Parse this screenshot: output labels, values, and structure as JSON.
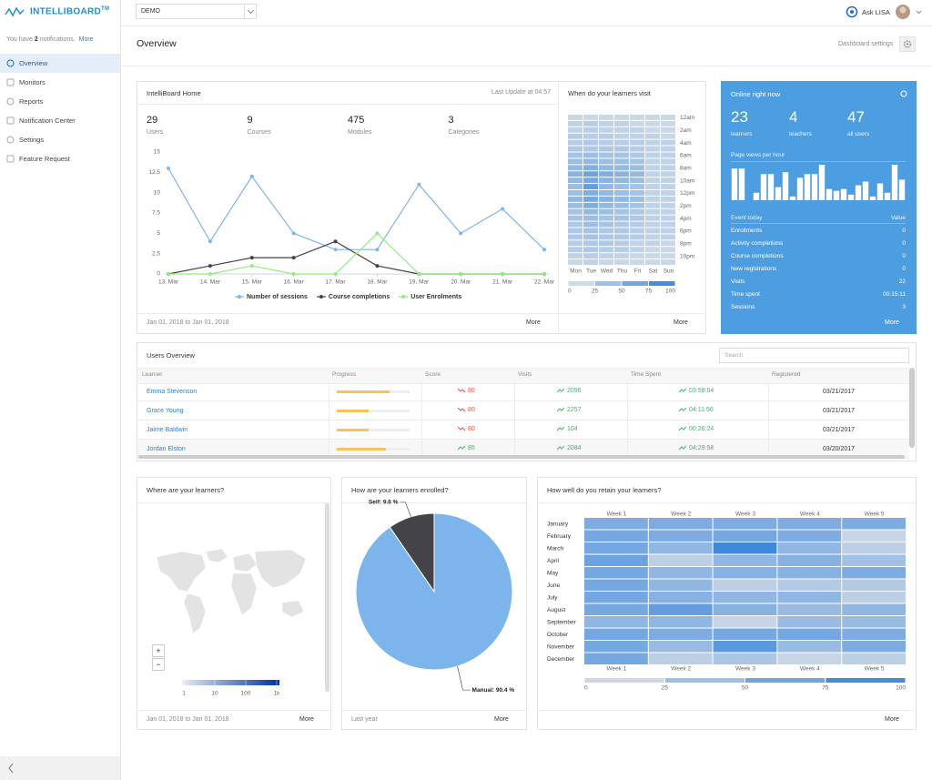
{
  "sidebar": {
    "brand": "INTELLIBOARD",
    "brand_mark": "TM",
    "notice": {
      "prefix": "You have",
      "count": 2,
      "suffix": "notifications.",
      "link": "More"
    },
    "nav": [
      "Overview",
      "Monitors",
      "Reports",
      "Notification Center",
      "Settings",
      "Feature Request"
    ],
    "active": 0
  },
  "topbar": {
    "select": "DEMO",
    "assistant": "Ask LISA"
  },
  "header": {
    "title": "Overview",
    "settings": "Dashboard settings"
  },
  "home": {
    "title": "IntelliBoard Home",
    "updated": "Last Update at 04:57",
    "stats": [
      {
        "value": 29,
        "label": "Users"
      },
      {
        "value": 9,
        "label": "Courses"
      },
      {
        "value": 475,
        "label": "Modules"
      },
      {
        "value": 3,
        "label": "Categories"
      }
    ],
    "period": "Jan 01, 2018 to Jan 01, 2018",
    "more": "More",
    "chart": {
      "type": "line",
      "categories": [
        "13. Mar",
        "14. Mar",
        "15. Mar",
        "16. Mar",
        "17. Mar",
        "18. Mar",
        "19. Mar",
        "20. Mar",
        "21. Mar",
        "22. Mar"
      ],
      "ylim": [
        0,
        15
      ],
      "yticks": [
        0,
        2.5,
        5,
        7.5,
        10,
        12.5,
        15
      ],
      "series": [
        {
          "name": "Number of sessions",
          "color": "#7cb5ec",
          "values": [
            13,
            4,
            12,
            5,
            3,
            3,
            11,
            5,
            8,
            3
          ]
        },
        {
          "name": "Course completions",
          "color": "#434348",
          "values": [
            0,
            1,
            2,
            2,
            4,
            1,
            0,
            0,
            0,
            0
          ]
        },
        {
          "name": "User Enrolments",
          "color": "#90ed7d",
          "values": [
            0,
            0,
            1,
            0,
            0,
            5,
            0,
            0,
            0,
            0
          ]
        }
      ]
    }
  },
  "visits": {
    "title": "When do your learners visit",
    "more": "More",
    "chart": {
      "type": "heatmap",
      "x": [
        "Mon",
        "Tue",
        "Wed",
        "Thu",
        "Fri",
        "Sat",
        "Sun"
      ],
      "y": [
        "12am",
        null,
        "2am",
        null,
        "4am",
        null,
        "6am",
        null,
        "8am",
        null,
        "10am",
        null,
        "12pm",
        null,
        "2pm",
        null,
        "4pm",
        null,
        "6pm",
        null,
        "8pm",
        null,
        "10pm",
        null
      ],
      "values": [
        [
          15,
          15,
          15,
          15,
          15,
          15,
          15
        ],
        [
          20,
          25,
          20,
          20,
          15,
          15,
          15
        ],
        [
          20,
          25,
          20,
          20,
          20,
          15,
          15
        ],
        [
          25,
          25,
          25,
          20,
          20,
          20,
          15
        ],
        [
          25,
          30,
          25,
          25,
          25,
          20,
          20
        ],
        [
          30,
          30,
          30,
          30,
          25,
          20,
          20
        ],
        [
          35,
          40,
          35,
          35,
          30,
          20,
          20
        ],
        [
          40,
          45,
          40,
          40,
          35,
          20,
          20
        ],
        [
          45,
          55,
          45,
          45,
          40,
          20,
          20
        ],
        [
          50,
          65,
          55,
          50,
          45,
          20,
          20
        ],
        [
          45,
          60,
          50,
          45,
          40,
          20,
          20
        ],
        [
          40,
          70,
          45,
          40,
          35,
          20,
          20
        ],
        [
          40,
          55,
          45,
          40,
          35,
          20,
          20
        ],
        [
          45,
          60,
          50,
          45,
          40,
          20,
          20
        ],
        [
          40,
          55,
          45,
          40,
          35,
          20,
          20
        ],
        [
          35,
          45,
          40,
          35,
          30,
          20,
          20
        ],
        [
          35,
          40,
          35,
          35,
          30,
          20,
          20
        ],
        [
          30,
          40,
          35,
          30,
          25,
          20,
          20
        ],
        [
          30,
          35,
          30,
          30,
          25,
          20,
          20
        ],
        [
          30,
          35,
          30,
          30,
          25,
          20,
          20
        ],
        [
          25,
          30,
          30,
          25,
          20,
          20,
          15
        ],
        [
          25,
          30,
          25,
          25,
          20,
          15,
          15
        ],
        [
          20,
          25,
          20,
          20,
          15,
          15,
          15
        ],
        [
          15,
          20,
          15,
          15,
          15,
          15,
          15
        ]
      ],
      "zlim": [
        0,
        100
      ],
      "zticks": [
        0,
        25,
        50,
        75,
        100
      ],
      "colors": [
        "#e4e7ec",
        "#2f7fd9"
      ]
    }
  },
  "online": {
    "title": "Online right now",
    "stats": [
      {
        "value": 23,
        "label": "learners"
      },
      {
        "value": 4,
        "label": "teachers"
      },
      {
        "value": 47,
        "label": "all users"
      }
    ],
    "chart": {
      "type": "bar",
      "title": "Page views per hour",
      "values": [
        34,
        34,
        0,
        8,
        28,
        28,
        14,
        30,
        4,
        24,
        28,
        28,
        38,
        12,
        10,
        12,
        6,
        16,
        20,
        4,
        18,
        8,
        38,
        22
      ],
      "color": "#ffffff"
    },
    "events": {
      "header": [
        "Event today",
        "Value"
      ],
      "rows": [
        [
          "Enrollments",
          0
        ],
        [
          "Activity completions",
          0
        ],
        [
          "Course completions",
          0
        ],
        [
          "New registrations",
          0
        ],
        [
          "Visits",
          22
        ],
        [
          "Time spent",
          "00:15:11"
        ],
        [
          "Sessions",
          3
        ]
      ]
    },
    "more": "More"
  },
  "users": {
    "title": "Users Overview",
    "search": "Search",
    "columns": [
      "Learner",
      "Progress",
      "Score",
      "Visits",
      "Time Spent",
      "Registered"
    ],
    "rows": [
      {
        "name": "Emma Stevenson",
        "progress": 72,
        "score": 80,
        "score_trend": "down",
        "visits": 2096,
        "visits_trend": "up",
        "time": "03:59:04",
        "registered": "03/21/2017"
      },
      {
        "name": "Grace Young",
        "progress": 44,
        "score": 80,
        "score_trend": "down",
        "visits": 2257,
        "visits_trend": "up",
        "time": "04:11:56",
        "registered": "03/21/2017"
      },
      {
        "name": "Jaime Baldwin",
        "progress": 44,
        "score": 80,
        "score_trend": "down",
        "visits": 104,
        "visits_trend": "up",
        "time": "00:26:24",
        "registered": "03/21/2017"
      },
      {
        "name": "Jordan Elston",
        "progress": 67,
        "score": 85,
        "score_trend": "up",
        "visits": 2084,
        "visits_trend": "up",
        "time": "04:29:58",
        "registered": "03/20/2017"
      }
    ]
  },
  "map": {
    "title": "Where are your learners?",
    "zoom": [
      "+",
      "−"
    ],
    "legend": {
      "type": "colorbar",
      "log": true,
      "xlim": [
        1,
        1000
      ],
      "xticks": [
        1,
        10,
        100,
        {
          "value": 1000,
          "label": "1k"
        }
      ],
      "colors": [
        "#e6ebf5",
        "#003399"
      ]
    },
    "period": "Jan 01, 2018 to Jan 01, 2018",
    "more": "More"
  },
  "enrol": {
    "title": "How are your learners enrolled?",
    "chart": {
      "type": "pie",
      "categories": [
        "Self",
        "Manual"
      ],
      "values": [
        9.6,
        90.4
      ],
      "value_labels": [
        "Self: 9.6 %",
        "Manual: 90.4 %"
      ],
      "colors": [
        "#434348",
        "#7cb5ec"
      ]
    },
    "period": "Last year",
    "more": "More"
  },
  "retention": {
    "title": "How well do you retain your learners?",
    "chart": {
      "type": "heatmap",
      "x": [
        "Week 1",
        "Week 2",
        "Week 3",
        "Week 4",
        "Week 5"
      ],
      "y": [
        "January",
        "February",
        "March",
        "April",
        "May",
        "June",
        "July",
        "August",
        "September",
        "October",
        "November",
        "December"
      ],
      "values": [
        [
          55,
          55,
          55,
          55,
          55
        ],
        [
          60,
          55,
          60,
          55,
          15
        ],
        [
          60,
          45,
          90,
          45,
          20
        ],
        [
          65,
          20,
          45,
          50,
          35
        ],
        [
          60,
          45,
          50,
          50,
          55
        ],
        [
          60,
          45,
          20,
          25,
          25
        ],
        [
          60,
          50,
          45,
          45,
          20
        ],
        [
          60,
          70,
          50,
          40,
          45
        ],
        [
          45,
          45,
          15,
          40,
          40
        ],
        [
          60,
          55,
          60,
          60,
          55
        ],
        [
          60,
          40,
          75,
          40,
          55
        ],
        [
          60,
          20,
          30,
          15,
          20
        ]
      ],
      "zlim": [
        0,
        100
      ],
      "zticks": [
        0,
        25,
        50,
        75,
        100
      ],
      "colors": [
        "#e1e3e6",
        "#2d7fdc"
      ]
    },
    "more": "More"
  }
}
